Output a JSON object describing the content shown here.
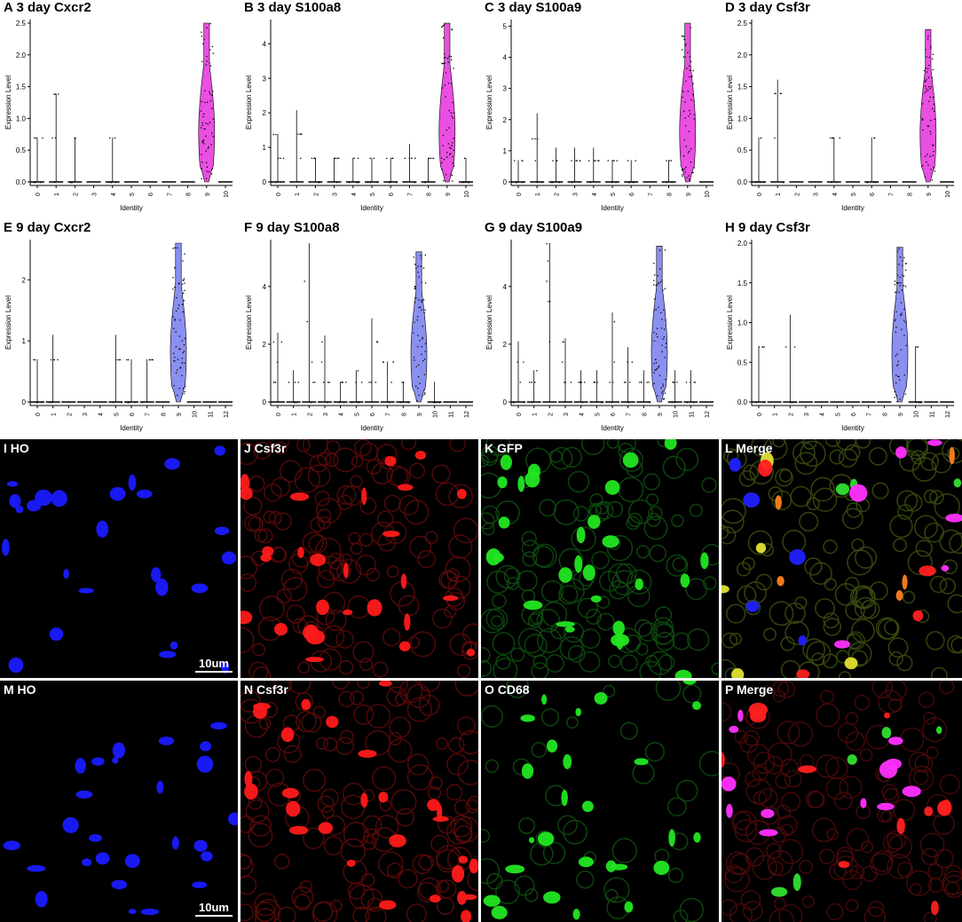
{
  "chart_data": [
    {
      "type": "violin",
      "panel": "A",
      "title": "A 3 day Cxcr2",
      "xlabel": "Identity",
      "ylabel": "Expression Level",
      "categories": [
        "0",
        "1",
        "2",
        "3",
        "4",
        "5",
        "6",
        "7",
        "8",
        "9",
        "10"
      ],
      "ylim": [
        0,
        2.5
      ],
      "yticks": [
        "0.0",
        "0.5",
        "1.0",
        "1.5",
        "2.0",
        "2.5"
      ],
      "max": [
        0.7,
        1.39,
        0.7,
        0,
        0.7,
        0,
        0,
        0,
        0,
        2.5,
        0
      ],
      "highlight": 9,
      "color": "#e94fe1"
    },
    {
      "type": "violin",
      "panel": "B",
      "title": "B 3 day S100a8",
      "xlabel": "Identity",
      "ylabel": "Expression Level",
      "categories": [
        "0",
        "1",
        "2",
        "3",
        "4",
        "5",
        "6",
        "7",
        "8",
        "9",
        "10"
      ],
      "ylim": [
        0,
        4.6
      ],
      "yticks": [
        "0",
        "1",
        "2",
        "3",
        "4"
      ],
      "max": [
        1.39,
        2.08,
        0.7,
        0.7,
        0.7,
        0.7,
        0.7,
        1.1,
        0.7,
        4.6,
        0.7
      ],
      "highlight": 9,
      "color": "#e94fe1"
    },
    {
      "type": "violin",
      "panel": "C",
      "title": "C 3 day S100a9",
      "xlabel": "Identity",
      "ylabel": "Expression Level",
      "categories": [
        "0",
        "1",
        "2",
        "3",
        "4",
        "5",
        "6",
        "7",
        "8",
        "9",
        "10"
      ],
      "ylim": [
        0,
        5.1
      ],
      "yticks": [
        "0",
        "1",
        "2",
        "3",
        "4",
        "5"
      ],
      "max": [
        0.7,
        2.2,
        1.1,
        1.1,
        1.1,
        0.7,
        0.7,
        0,
        0.7,
        5.1,
        0
      ],
      "highlight": 9,
      "color": "#e94fe1"
    },
    {
      "type": "violin",
      "panel": "D",
      "title": "D 3 day Csf3r",
      "xlabel": "Identity",
      "ylabel": "Expression Level",
      "categories": [
        "0",
        "1",
        "2",
        "3",
        "4",
        "5",
        "6",
        "7",
        "8",
        "9",
        "10"
      ],
      "ylim": [
        0,
        2.5
      ],
      "yticks": [
        "0.0",
        "0.5",
        "1.0",
        "1.5",
        "2.0",
        "2.5"
      ],
      "max": [
        0.7,
        1.61,
        0,
        0,
        0.7,
        0,
        0.7,
        0,
        0,
        2.4,
        0
      ],
      "highlight": 9,
      "color": "#e94fe1"
    },
    {
      "type": "violin",
      "panel": "E",
      "title": "E 9 day Cxcr2",
      "xlabel": "Identity",
      "ylabel": "Expression Level",
      "categories": [
        "0",
        "1",
        "2",
        "3",
        "4",
        "5",
        "6",
        "7",
        "8",
        "9",
        "10",
        "11",
        "12"
      ],
      "ylim": [
        0,
        2.6
      ],
      "yticks": [
        "0",
        "1",
        "2"
      ],
      "max": [
        0.7,
        1.1,
        0,
        0,
        0,
        1.1,
        0.7,
        0.7,
        0,
        2.6,
        0,
        0,
        0
      ],
      "highlight": 9,
      "color": "#8b8ff0"
    },
    {
      "type": "violin",
      "panel": "F",
      "title": "F 9 day S100a8",
      "xlabel": "Identity",
      "ylabel": "Expression Level",
      "categories": [
        "0",
        "1",
        "2",
        "3",
        "4",
        "5",
        "6",
        "7",
        "8",
        "9",
        "10",
        "11",
        "12"
      ],
      "ylim": [
        0,
        5.5
      ],
      "yticks": [
        "0",
        "2",
        "4"
      ],
      "max": [
        2.4,
        1.1,
        5.5,
        2.3,
        0.7,
        1.1,
        2.9,
        1.4,
        0.7,
        5.2,
        0.7,
        0,
        0
      ],
      "highlight": 9,
      "color": "#8b8ff0"
    },
    {
      "type": "violin",
      "panel": "G",
      "title": "G 9 day S100a9",
      "xlabel": "Identity",
      "ylabel": "Expression Level",
      "categories": [
        "0",
        "1",
        "2",
        "3",
        "4",
        "5",
        "6",
        "7",
        "8",
        "9",
        "10",
        "11",
        "12"
      ],
      "ylim": [
        0,
        5.5
      ],
      "yticks": [
        "0",
        "2",
        "4"
      ],
      "max": [
        2.1,
        1.1,
        5.5,
        2.2,
        1.1,
        1.1,
        3.1,
        1.9,
        1.1,
        5.4,
        1.1,
        1.1,
        0
      ],
      "highlight": 9,
      "color": "#8b8ff0"
    },
    {
      "type": "violin",
      "panel": "H",
      "title": "H 9 day Csf3r",
      "xlabel": "Identity",
      "ylabel": "Expression Level",
      "categories": [
        "0",
        "1",
        "2",
        "3",
        "4",
        "5",
        "6",
        "7",
        "8",
        "9",
        "10",
        "11",
        "12"
      ],
      "ylim": [
        0,
        2.0
      ],
      "yticks": [
        "0.0",
        "0.5",
        "1.0",
        "1.5",
        "2.0"
      ],
      "max": [
        0.7,
        0,
        1.1,
        0,
        0,
        0,
        0,
        0,
        0,
        1.95,
        0.7,
        0,
        0
      ],
      "highlight": 9,
      "color": "#8b8ff0"
    }
  ],
  "micrographs": [
    {
      "label": "I HO",
      "color": "#1a1aff",
      "density": "sparse",
      "seed": 3,
      "scale": "10um"
    },
    {
      "label": "J Csf3r",
      "color": "#ff1a1a",
      "density": "dense",
      "seed": 7,
      "scale": ""
    },
    {
      "label": "K GFP",
      "color": "#22e622",
      "density": "dense",
      "seed": 11,
      "scale": ""
    },
    {
      "label": "L Merge",
      "color": "merge",
      "density": "dense",
      "seed": 19,
      "scale": ""
    },
    {
      "label": "M HO",
      "color": "#1a1aff",
      "density": "sparse",
      "seed": 23,
      "scale": "10um"
    },
    {
      "label": "N Csf3r",
      "color": "#ff1a1a",
      "density": "dense",
      "seed": 29,
      "scale": ""
    },
    {
      "label": "O CD68",
      "color": "#22e622",
      "density": "sparse",
      "seed": 31,
      "scale": ""
    },
    {
      "label": "P Merge",
      "color": "merge2",
      "density": "dense",
      "seed": 37,
      "scale": ""
    }
  ]
}
